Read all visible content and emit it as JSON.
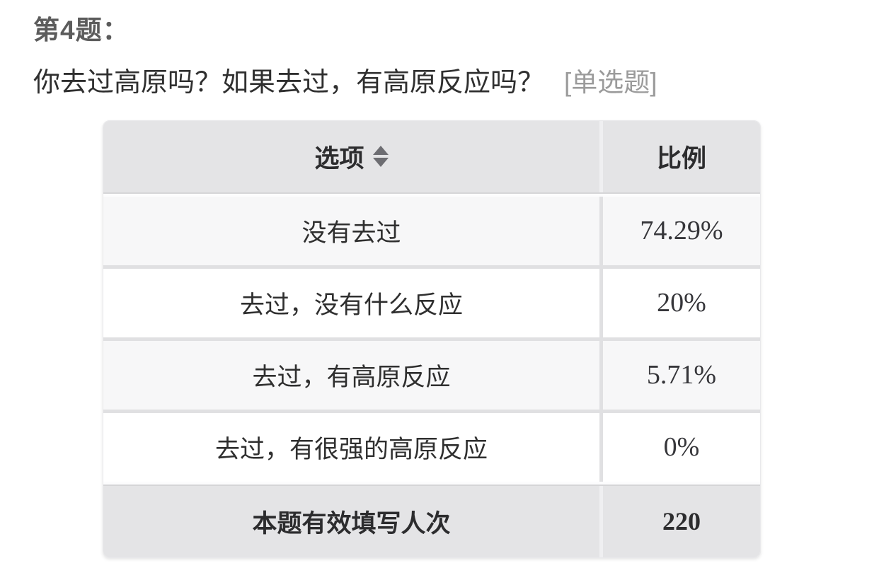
{
  "question": {
    "number_label": "第4题：",
    "text": "你去过高原吗？如果去过，有高原反应吗？",
    "type_tag": "[单选题]"
  },
  "table": {
    "header": {
      "option": "选项",
      "ratio": "比例"
    },
    "rows": [
      {
        "option": "没有去过",
        "ratio": "74.29%"
      },
      {
        "option": "去过，没有什么反应",
        "ratio": "20%"
      },
      {
        "option": "去过，有高原反应",
        "ratio": "5.71%"
      },
      {
        "option": "去过，有很强的高原反应",
        "ratio": "0%"
      }
    ],
    "footer": {
      "label": "本题有效填写人次",
      "value": "220"
    }
  },
  "icons": {
    "sort": "sort-arrows"
  },
  "colors": {
    "header_bg": "#e4e4e6",
    "row_odd_bg": "#f7f7f8",
    "row_even_bg": "#ffffff",
    "separator": "#e0e0e2",
    "title_color": "#5c5c5c",
    "text_color": "#2f2f2f",
    "tag_color": "#9b9b9b",
    "sort_icon_color": "#6d6d72"
  },
  "chart_data": {
    "type": "table",
    "title": "你去过高原吗？如果去过，有高原反应吗？",
    "columns": [
      "选项",
      "比例"
    ],
    "categories": [
      "没有去过",
      "去过，没有什么反应",
      "去过，有高原反应",
      "去过，有很强的高原反应"
    ],
    "values_percent": [
      74.29,
      20,
      5.71,
      0
    ],
    "valid_responses": 220
  }
}
